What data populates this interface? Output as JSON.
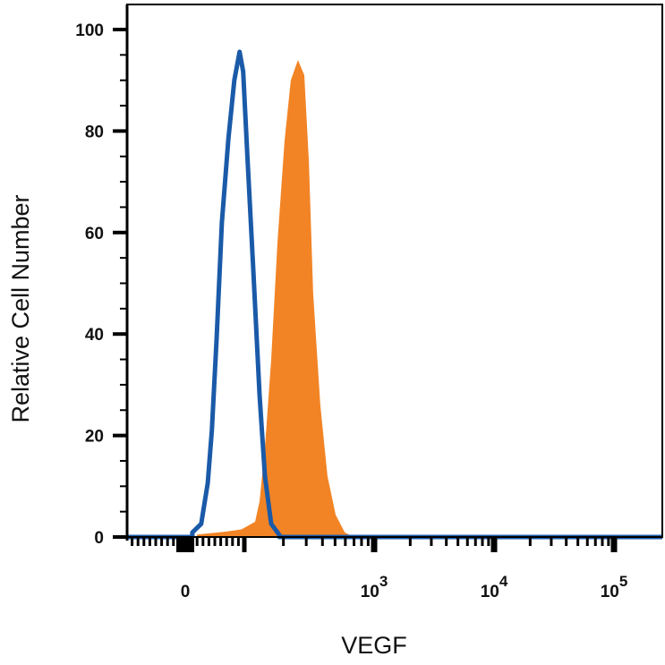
{
  "chart_data": {
    "type": "area",
    "title": "",
    "xlabel": "VEGF",
    "ylabel": "Relative Cell Number",
    "x_scale": "biexponential",
    "ylim": [
      0,
      100
    ],
    "yticks": [
      "0",
      "20",
      "40",
      "60",
      "80",
      "100"
    ],
    "xticks": [
      {
        "value": 0,
        "base": "0",
        "exp": ""
      },
      {
        "value": 1000,
        "base": "10",
        "exp": "3"
      },
      {
        "value": 10000,
        "base": "10",
        "exp": "4"
      },
      {
        "value": 100000,
        "base": "10",
        "exp": "5"
      }
    ],
    "grid": false,
    "legend": "none",
    "series": [
      {
        "style": "filled",
        "color": "#f28425",
        "points": [
          [
            20,
            0.5
          ],
          [
            65,
            1
          ],
          [
            95,
            1.5
          ],
          [
            121,
            3
          ],
          [
            131,
            7
          ],
          [
            144,
            17.6
          ],
          [
            161,
            35
          ],
          [
            180,
            58
          ],
          [
            204,
            78
          ],
          [
            228,
            90
          ],
          [
            259,
            94
          ],
          [
            290,
            91
          ],
          [
            314,
            74
          ],
          [
            339,
            48
          ],
          [
            385,
            26
          ],
          [
            437,
            12
          ],
          [
            505,
            4.4
          ],
          [
            594,
            0.9
          ],
          [
            694,
            0
          ]
        ]
      },
      {
        "style": "outline",
        "color": "#1a5aa8",
        "points": [
          [
            12,
            0.9
          ],
          [
            27,
            2.6
          ],
          [
            38,
            10.6
          ],
          [
            45,
            21
          ],
          [
            53,
            39
          ],
          [
            62,
            62
          ],
          [
            73,
            78.5
          ],
          [
            83,
            90
          ],
          [
            92,
            95.6
          ],
          [
            98,
            91.7
          ],
          [
            106,
            74
          ],
          [
            117,
            53
          ],
          [
            131,
            28
          ],
          [
            144,
            12
          ],
          [
            161,
            2.6
          ],
          [
            186,
            0.4
          ]
        ]
      }
    ]
  }
}
